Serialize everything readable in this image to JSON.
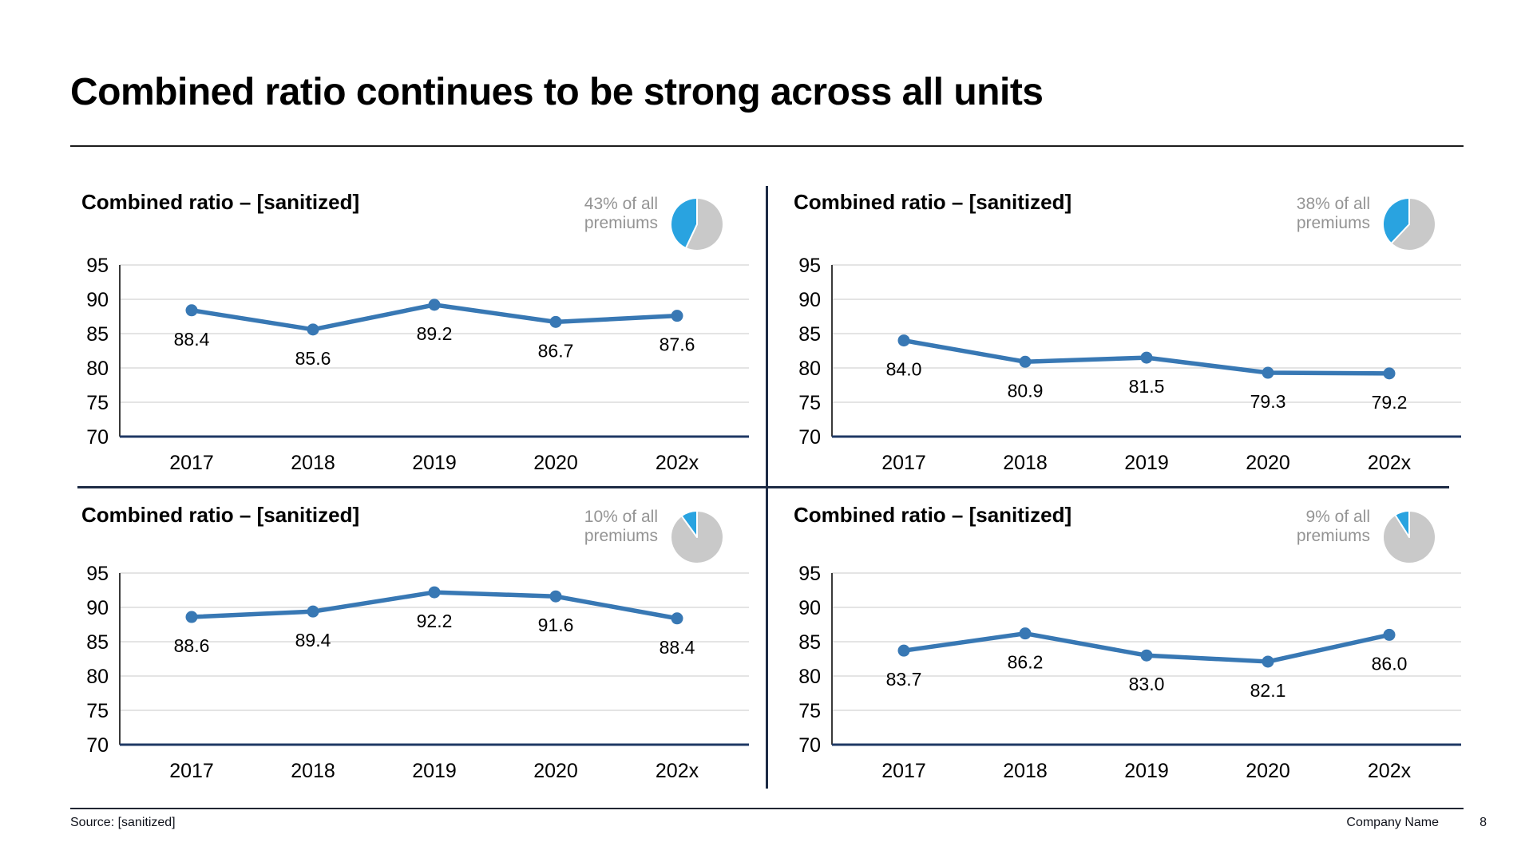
{
  "page": {
    "title": "Combined ratio continues to be strong across all units",
    "footer": {
      "source": "Source: [sanitized]",
      "company": "Company Name",
      "page_number": "8"
    }
  },
  "colors": {
    "line_blue": "#3878b4",
    "marker_blue": "#3878b4",
    "pie_blue": "#29a3e0",
    "pie_gray": "#c9c9c9",
    "grid": "#dcdcdc",
    "axis_left": "#3a3a3a",
    "axis_bottom": "#1f3864",
    "data_label": "#000000",
    "tick_label": "#000000"
  },
  "chart_data": [
    {
      "type": "line",
      "position": "top-left",
      "title": "Combined ratio – [sanitized]",
      "premium_label": "43% of all premiums",
      "premium_pct": 43,
      "categories": [
        "2017",
        "2018",
        "2019",
        "2020",
        "202x"
      ],
      "values": [
        88.4,
        85.6,
        89.2,
        86.7,
        87.6
      ],
      "ylim": [
        70,
        95
      ],
      "yticks": [
        95,
        90,
        85,
        80,
        75,
        70
      ],
      "grid": true,
      "legend": "none"
    },
    {
      "type": "line",
      "position": "top-right",
      "title": "Combined ratio – [sanitized]",
      "premium_label": "38% of all premiums",
      "premium_pct": 38,
      "categories": [
        "2017",
        "2018",
        "2019",
        "2020",
        "202x"
      ],
      "values": [
        84.0,
        80.9,
        81.5,
        79.3,
        79.2
      ],
      "ylim": [
        70,
        95
      ],
      "yticks": [
        95,
        90,
        85,
        80,
        75,
        70
      ],
      "grid": true,
      "legend": "none"
    },
    {
      "type": "line",
      "position": "bottom-left",
      "title": "Combined ratio – [sanitized]",
      "premium_label": "10% of all premiums",
      "premium_pct": 10,
      "categories": [
        "2017",
        "2018",
        "2019",
        "2020",
        "202x"
      ],
      "values": [
        88.6,
        89.4,
        92.2,
        91.6,
        88.4
      ],
      "ylim": [
        70,
        95
      ],
      "yticks": [
        95,
        90,
        85,
        80,
        75,
        70
      ],
      "grid": true,
      "legend": "none"
    },
    {
      "type": "line",
      "position": "bottom-right",
      "title": "Combined ratio – [sanitized]",
      "premium_label": "9% of all premiums",
      "premium_pct": 9,
      "categories": [
        "2017",
        "2018",
        "2019",
        "2020",
        "202x"
      ],
      "values": [
        83.7,
        86.2,
        83.0,
        82.1,
        86.0
      ],
      "ylim": [
        70,
        95
      ],
      "yticks": [
        95,
        90,
        85,
        80,
        75,
        70
      ],
      "grid": true,
      "legend": "none"
    }
  ]
}
